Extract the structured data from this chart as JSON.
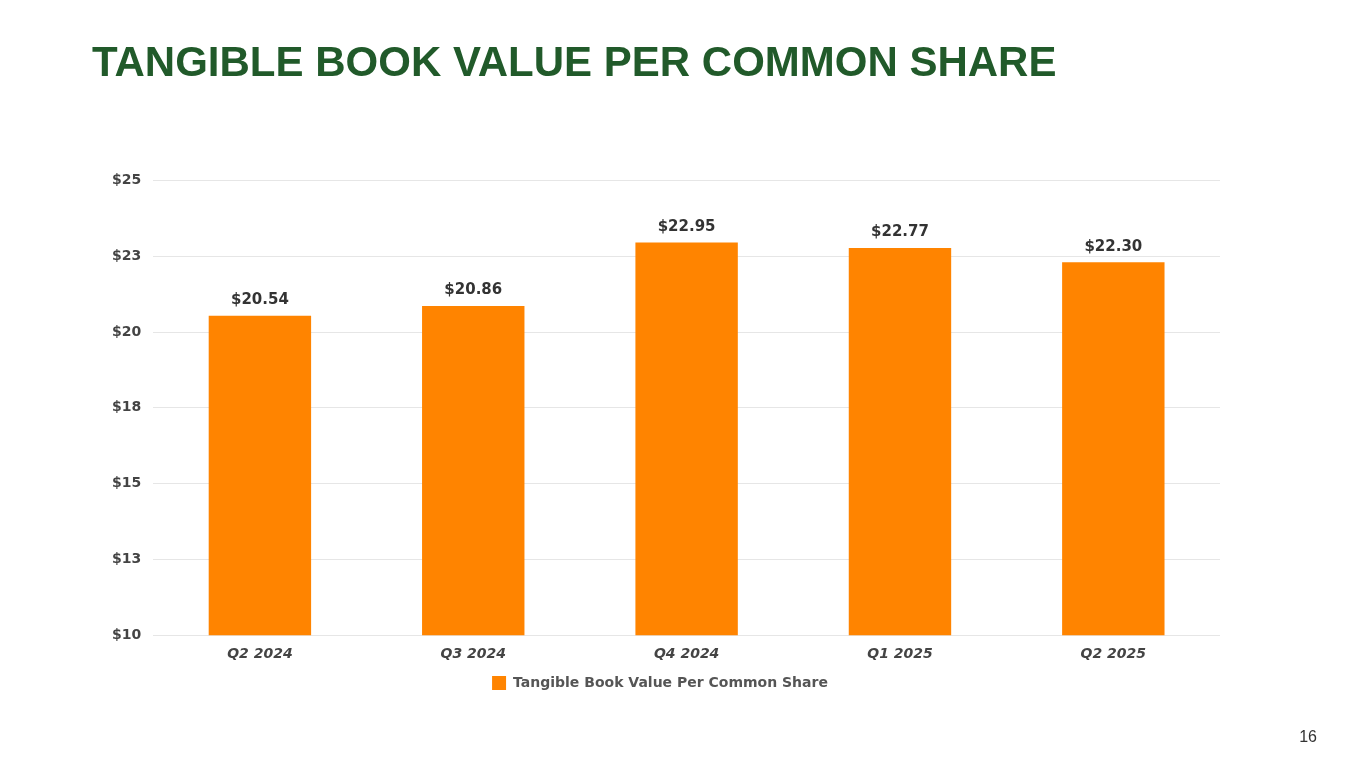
{
  "chart_data": {
    "type": "bar",
    "title": "TANGIBLE BOOK VALUE PER COMMON SHARE",
    "categories": [
      "Q2 2024",
      "Q3 2024",
      "Q4 2024",
      "Q1 2025",
      "Q2 2025"
    ],
    "series": [
      {
        "name": "Tangible Book Value Per Common Share",
        "color": "#ff8400",
        "values": [
          20.54,
          20.86,
          22.95,
          22.77,
          22.3
        ],
        "value_labels": [
          "$20.54",
          "$20.86",
          "$22.95",
          "$22.77",
          "$22.30"
        ]
      }
    ],
    "ylim": [
      10,
      25
    ],
    "yticks": [
      {
        "value": 10,
        "label": "$10"
      },
      {
        "value": 12.5,
        "label": "$13"
      },
      {
        "value": 15,
        "label": "$15"
      },
      {
        "value": 17.5,
        "label": "$18"
      },
      {
        "value": 20,
        "label": "$20"
      },
      {
        "value": 22.5,
        "label": "$23"
      },
      {
        "value": 25,
        "label": "$25"
      }
    ],
    "grid": "y",
    "legend": "bottom",
    "annotations": [
      "16"
    ]
  }
}
